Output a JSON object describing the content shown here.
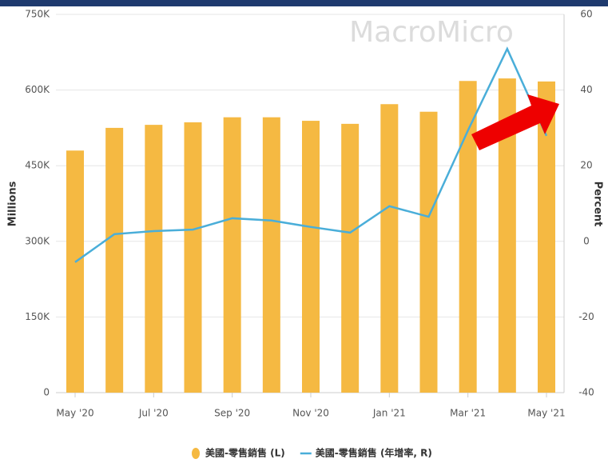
{
  "chart_data": {
    "type": "bar_line",
    "watermark": "MacroMicro",
    "y_label": "Millions",
    "y2_label": "Percent",
    "categories": [
      "May '20",
      null,
      "Jul '20",
      null,
      "Sep '20",
      null,
      "Nov '20",
      null,
      "Jan '21",
      null,
      "Mar '21",
      null,
      "May '21"
    ],
    "series": [
      {
        "name": "美國-零售銷售 (L)",
        "color": "#f5b942",
        "type": "bar",
        "values": [
          480,
          525,
          531,
          536,
          546,
          546,
          539,
          533,
          572,
          557,
          618,
          623,
          617
        ]
      },
      {
        "name": "美國-零售銷售 (年增率, R)",
        "color": "#4aaed9",
        "type": "line",
        "axis": "y2",
        "values": [
          -5.5,
          1.9,
          2.7,
          3.1,
          6.1,
          5.5,
          3.8,
          2.3,
          9.3,
          6.5,
          29.3,
          50.9,
          27.9
        ]
      }
    ],
    "ylim": [
      0,
      750
    ],
    "yticks": [
      0,
      {
        "value": 150,
        "label": "150K"
      },
      {
        "value": 300,
        "label": "300K"
      },
      {
        "value": 450,
        "label": "450K"
      },
      {
        "value": 600,
        "label": "600K"
      },
      {
        "value": 750,
        "label": "750K"
      }
    ],
    "y2lim": [
      -40,
      60
    ],
    "y2ticks": [
      -40,
      -20,
      0,
      20,
      40,
      60
    ],
    "grid": true
  }
}
